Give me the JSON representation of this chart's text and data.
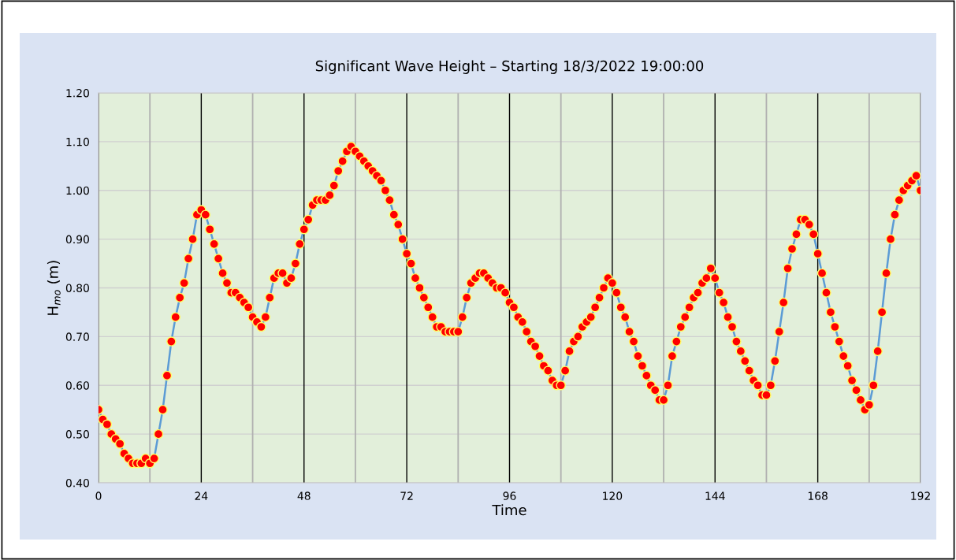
{
  "chart_data": {
    "type": "line",
    "title": "Significant Wave Height – Starting 18/3/2022 19:00:00",
    "xlabel": "Time",
    "ylabel": "H$_{mo}$ (m)",
    "x": [
      0,
      1,
      2,
      3,
      4,
      5,
      6,
      7,
      8,
      9,
      10,
      11,
      12,
      13,
      14,
      15,
      16,
      17,
      18,
      19,
      20,
      21,
      22,
      23,
      24,
      25,
      26,
      27,
      28,
      29,
      30,
      31,
      32,
      33,
      34,
      35,
      36,
      37,
      38,
      39,
      40,
      41,
      42,
      43,
      44,
      45,
      46,
      47,
      48,
      49,
      50,
      51,
      52,
      53,
      54,
      55,
      56,
      57,
      58,
      59,
      60,
      61,
      62,
      63,
      64,
      65,
      66,
      67,
      68,
      69,
      70,
      71,
      72,
      73,
      74,
      75,
      76,
      77,
      78,
      79,
      80,
      81,
      82,
      83,
      84,
      85,
      86,
      87,
      88,
      89,
      90,
      91,
      92,
      93,
      94,
      95,
      96,
      97,
      98,
      99,
      100,
      101,
      102,
      103,
      104,
      105,
      106,
      107,
      108,
      109,
      110,
      111,
      112,
      113,
      114,
      115,
      116,
      117,
      118,
      119,
      120,
      121,
      122,
      123,
      124,
      125,
      126,
      127,
      128,
      129,
      130,
      131,
      132,
      133,
      134,
      135,
      136,
      137,
      138,
      139,
      140,
      141,
      142,
      143,
      144,
      145,
      146,
      147,
      148,
      149,
      150,
      151,
      152,
      153,
      154,
      155,
      156,
      157,
      158,
      159,
      160,
      161,
      162,
      163,
      164,
      165,
      166,
      167,
      168,
      169,
      170,
      171,
      172,
      173,
      174,
      175,
      176,
      177,
      178,
      179,
      180,
      181,
      182,
      183,
      184,
      185,
      186,
      187,
      188,
      189,
      190,
      191,
      192
    ],
    "series": [
      {
        "color": "#5b9bd5",
        "colors": [
          "#ff0000",
          "#ff0000",
          "#ff0000",
          "#ff0000",
          "#ff0000",
          "#ff0000",
          "#ff0000",
          "#ff0000",
          "#ff0000",
          "#ff0000",
          "#ff0000",
          "#ff0000",
          "#ff0000",
          "#ff0000",
          "#ff0000",
          "#ff0000",
          "#ff0000",
          "#ff0000",
          "#ff0000",
          "#ff0000",
          "#ff0000",
          "#ff0000",
          "#ff0000",
          "#ff0000",
          "#ff0000",
          "#ff0000",
          "#ff0000",
          "#ff0000",
          "#ff0000",
          "#ff0000",
          "#ff0000",
          "#ff0000",
          "#ff0000",
          "#ff0000",
          "#ff0000",
          "#ff0000",
          "#ff0000",
          "#ff0000",
          "#ff0000",
          "#ff0000",
          "#ff0000",
          "#ff0000",
          "#ff0000",
          "#ff0000",
          "#ff0000",
          "#ff0000",
          "#ff0000",
          "#ff0000",
          "#ff0000",
          "#ff0000",
          "#ff0000",
          "#ff0000",
          "#ff0000",
          "#ff0000",
          "#ff0000",
          "#ff0000",
          "#ff0000",
          "#ff0000",
          "#ff0000",
          "#ff0000",
          "#ff0000",
          "#ff0000",
          "#ff0000",
          "#ff0000",
          "#ff0000",
          "#ff0000",
          "#ff0000",
          "#ff0000",
          "#ff0000",
          "#ff0000",
          "#ff0000",
          "#ff0000",
          "#ff0000",
          "#ff0000",
          "#ff0000",
          "#ff0000",
          "#ff0000",
          "#ff0000",
          "#ff0000",
          "#ff0000",
          "#ff0000",
          "#ff0000",
          "#ff0000",
          "#ff0000",
          "#ff0000",
          "#ff0000",
          "#ff0000",
          "#ff0000",
          "#ff0000",
          "#ff0000",
          "#ff0000",
          "#ff0000",
          "#ff0000",
          "#ff0000",
          "#ff0000",
          "#ff0000",
          "#ff0000",
          "#ff0000",
          "#ff0000",
          "#ff0000",
          "#ff0000",
          "#ff0000",
          "#ff0000",
          "#ff0000",
          "#ff0000",
          "#ff0000",
          "#ff0000",
          "#ff0000",
          "#ff0000",
          "#ff0000",
          "#ff0000",
          "#ff0000",
          "#ff0000",
          "#ff0000",
          "#ff0000",
          "#ff0000",
          "#ff0000",
          "#ff0000",
          "#ff0000",
          "#ff0000",
          "#ff0000",
          "#ff0000",
          "#ff0000",
          "#ff0000",
          "#ff0000",
          "#ff0000",
          "#ff0000",
          "#ff0000",
          "#ff0000",
          "#ff0000",
          "#ff0000",
          "#ff0000",
          "#ff0000",
          "#ff0000",
          "#ff0000",
          "#ff0000",
          "#ff0000",
          "#ff0000",
          "#ff0000",
          "#ff0000",
          "#ff0000",
          "#ff0000",
          "#ff0000",
          "#ff0000",
          "#ff0000",
          "#ff0000",
          "#ff0000",
          "#ff0000",
          "#ff0000",
          "#ff0000",
          "#ff0000",
          "#ff0000",
          "#ff0000",
          "#ff0000",
          "#ff0000",
          "#ff0000",
          "#ff0000",
          "#ff0000",
          "#ff0000",
          "#ff0000",
          "#ff0000",
          "#ff0000",
          "#ff0000",
          "#ff0000",
          "#ff0000",
          "#ff0000",
          "#ff0000",
          "#ff0000",
          "#ff0000",
          "#ff0000",
          "#ff0000",
          "#ff0000",
          "#ff0000",
          "#ff0000",
          "#ff0000",
          "#ff0000",
          "#ff0000",
          "#ff0000",
          "#ff0000",
          "#ff0000",
          "#ff0000",
          "#ff0000",
          "#ff0000",
          "#ff0000",
          "#ff0000",
          "#ff0000",
          "#ff0000",
          "#ff0000",
          "#ff0000",
          "#ff0000",
          "#ff0000",
          "#ff0000",
          "#ff0000"
        ],
        "values": [
          0.55,
          0.53,
          0.52,
          0.5,
          0.49,
          0.48,
          0.46,
          0.45,
          0.44,
          0.44,
          0.44,
          0.45,
          0.44,
          0.45,
          0.5,
          0.55,
          0.62,
          0.69,
          0.74,
          0.78,
          0.81,
          0.86,
          0.9,
          0.95,
          0.96,
          0.95,
          0.92,
          0.89,
          0.86,
          0.83,
          0.81,
          0.79,
          0.79,
          0.78,
          0.77,
          0.76,
          0.74,
          0.73,
          0.72,
          0.74,
          0.78,
          0.82,
          0.83,
          0.83,
          0.81,
          0.82,
          0.85,
          0.89,
          0.92,
          0.94,
          0.97,
          0.98,
          0.98,
          0.98,
          0.99,
          1.01,
          1.04,
          1.06,
          1.08,
          1.09,
          1.08,
          1.07,
          1.06,
          1.05,
          1.04,
          1.03,
          1.02,
          1.0,
          0.98,
          0.95,
          0.93,
          0.9,
          0.87,
          0.85,
          0.82,
          0.8,
          0.78,
          0.76,
          0.74,
          0.72,
          0.72,
          0.71,
          0.71,
          0.71,
          0.71,
          0.74,
          0.78,
          0.81,
          0.82,
          0.83,
          0.83,
          0.82,
          0.81,
          0.8,
          0.8,
          0.79,
          0.77,
          0.76,
          0.74,
          0.73,
          0.71,
          0.69,
          0.68,
          0.66,
          0.64,
          0.63,
          0.61,
          0.6,
          0.6,
          0.63,
          0.67,
          0.69,
          0.7,
          0.72,
          0.73,
          0.74,
          0.76,
          0.78,
          0.8,
          0.82,
          0.81,
          0.79,
          0.76,
          0.74,
          0.71,
          0.69,
          0.66,
          0.64,
          0.62,
          0.6,
          0.59,
          0.57,
          0.57,
          0.6,
          0.66,
          0.69,
          0.72,
          0.74,
          0.76,
          0.78,
          0.79,
          0.81,
          0.82,
          0.84,
          0.82,
          0.79,
          0.77,
          0.74,
          0.72,
          0.69,
          0.67,
          0.65,
          0.63,
          0.61,
          0.6,
          0.58,
          0.58,
          0.6,
          0.65,
          0.71,
          0.77,
          0.84,
          0.88,
          0.91,
          0.94,
          0.94,
          0.93,
          0.91,
          0.87,
          0.83,
          0.79,
          0.75,
          0.72,
          0.69,
          0.66,
          0.64,
          0.61,
          0.59,
          0.57,
          0.55,
          0.56,
          0.6,
          0.67,
          0.75,
          0.83,
          0.9,
          0.95,
          0.98,
          1.0,
          1.01,
          1.02,
          1.03,
          1.0
        ]
      }
    ],
    "xlim": [
      0,
      192
    ],
    "xticks": [
      0,
      {
        "value": 12,
        "label": null
      },
      24,
      {
        "value": 36,
        "label": null
      },
      48,
      {
        "value": 60,
        "label": null
      },
      72,
      {
        "value": 84,
        "label": null
      },
      96,
      {
        "value": 108,
        "label": null
      },
      120,
      {
        "value": 132,
        "label": null
      },
      144,
      {
        "value": 156,
        "label": null
      },
      168,
      {
        "value": 180,
        "label": null
      },
      192
    ],
    "ylim": [
      0.4,
      1.2
    ],
    "yticks": [
      {
        "value": 0.4,
        "label": "0.40"
      },
      {
        "value": 0.5,
        "label": "0.50"
      },
      {
        "value": 0.6,
        "label": "0.60"
      },
      {
        "value": 0.7,
        "label": "0.70"
      },
      {
        "value": 0.8,
        "label": "0.80"
      },
      {
        "value": 0.9,
        "label": "0.90"
      },
      {
        "value": 1.0,
        "label": "1.00"
      },
      {
        "value": 1.1,
        "label": "1.10"
      },
      {
        "value": 1.2,
        "label": "1.20"
      }
    ],
    "grid": true,
    "marker": "circle",
    "line_style": "solid"
  }
}
